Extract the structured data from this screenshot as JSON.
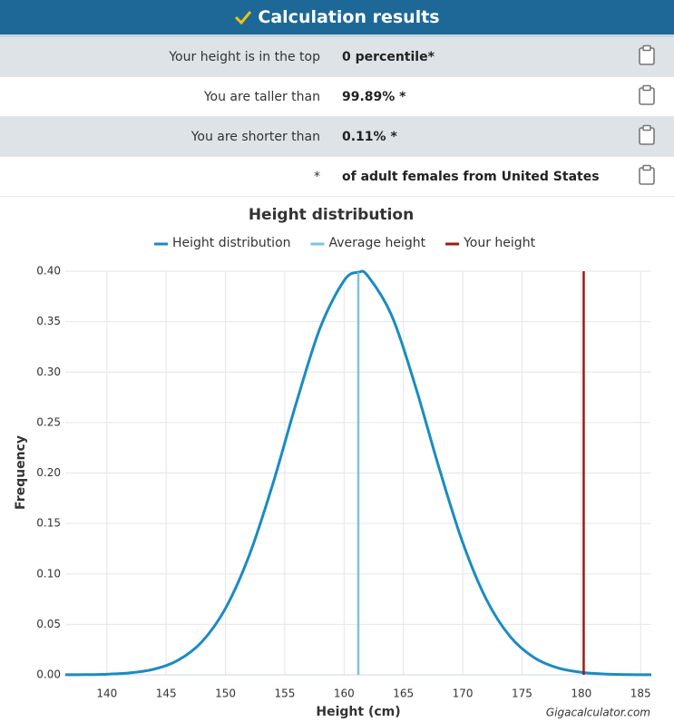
{
  "header": {
    "title": "Calculation results"
  },
  "results": {
    "rows": [
      [
        "Your height is in the top",
        "0 percentile*"
      ],
      [
        "You are taller than",
        "99.89% *"
      ],
      [
        "You are shorter than",
        "0.11% *"
      ],
      [
        "*",
        "of adult females from United States"
      ]
    ]
  },
  "chart_data": {
    "type": "line",
    "title": "Height distribution",
    "xlabel": "Height (cm)",
    "ylabel": "Frequency",
    "credit": "Gigacalculator.com",
    "xlim": [
      136.5,
      185.9
    ],
    "ylim": [
      0,
      0.4
    ],
    "xticks": [
      140,
      145,
      150,
      155,
      160,
      165,
      170,
      175,
      180,
      185
    ],
    "yticks": [
      {
        "value": 0,
        "label": "0.00"
      },
      {
        "value": 0.05,
        "label": "0.05"
      },
      {
        "value": 0.1,
        "label": "0.10"
      },
      {
        "value": 0.15,
        "label": "0.15"
      },
      {
        "value": 0.2,
        "label": "0.20"
      },
      {
        "value": 0.25,
        "label": "0.25"
      },
      {
        "value": 0.3,
        "label": "0.30"
      },
      {
        "value": 0.35,
        "label": "0.35"
      },
      {
        "value": 0.4,
        "label": "0.40"
      }
    ],
    "grid": true,
    "series": [
      {
        "name": "Height distribution",
        "color": "#1a8bc4",
        "x": [
          136.5,
          138,
          140,
          142,
          144,
          146,
          148,
          150,
          152,
          154,
          156,
          158,
          160,
          161.2,
          162,
          164,
          166,
          168,
          170,
          172,
          174,
          176,
          178,
          180,
          182,
          184,
          185.9
        ],
        "values": [
          0.0001,
          0.0002,
          0.0006,
          0.002,
          0.0057,
          0.0144,
          0.0326,
          0.0658,
          0.1183,
          0.1894,
          0.2706,
          0.3444,
          0.3907,
          0.3989,
          0.3953,
          0.3564,
          0.2865,
          0.2054,
          0.1311,
          0.0746,
          0.0379,
          0.0172,
          0.0069,
          0.0025,
          0.0008,
          0.0002,
          0.0001
        ]
      },
      {
        "name": "Average height",
        "color": "#7cc3e0",
        "x": [
          161.2,
          161.2
        ],
        "values": [
          0,
          0.3989
        ]
      },
      {
        "name": "Your height",
        "color": "#9b1b12",
        "x": [
          180.2,
          180.2
        ],
        "values": [
          0,
          0.4
        ]
      }
    ]
  }
}
